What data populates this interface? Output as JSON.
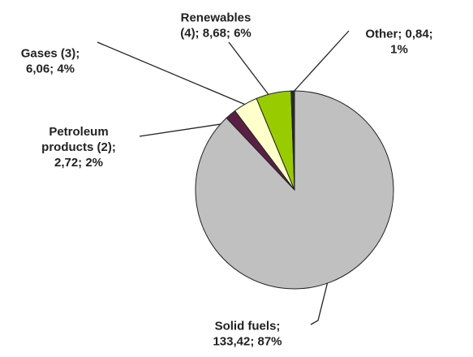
{
  "chart_data": {
    "type": "pie",
    "categories": [
      "Solid fuels",
      "Petroleum products (2)",
      "Gases (3)",
      "Renewables (4)",
      "Other"
    ],
    "values": [
      133.42,
      2.72,
      6.06,
      8.68,
      0.84
    ],
    "value_labels": [
      "Solid fuels;\n133,42; 87%",
      "Petroleum\nproducts (2);\n2,72; 2%",
      "Gases (3);\n6,06; 4%",
      "Renewables\n(4); 8,68; 6%",
      "Other; 0,84;\n1%"
    ],
    "colors": [
      "#c0c0c0",
      "#5a1f45",
      "#ffffcc",
      "#99cc00",
      "#2a2a2a"
    ]
  }
}
